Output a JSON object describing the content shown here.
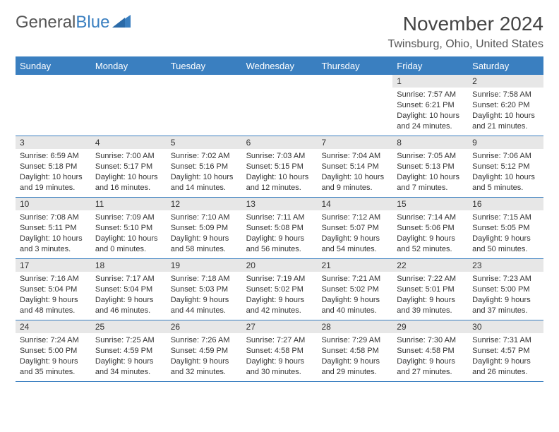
{
  "brand": {
    "part1": "General",
    "part2": "Blue",
    "logo_color": "#3a7fc0"
  },
  "title": "November 2024",
  "location": "Twinsburg, Ohio, United States",
  "dow_header_bg": "#3a7fc0",
  "dow_header_fg": "#ffffff",
  "daynum_bg": "#e7e7e7",
  "border_color": "#3a7fc0",
  "days_of_week": [
    "Sunday",
    "Monday",
    "Tuesday",
    "Wednesday",
    "Thursday",
    "Friday",
    "Saturday"
  ],
  "weeks": [
    [
      {
        "n": "",
        "sunrise": "",
        "sunset": "",
        "daylight": ""
      },
      {
        "n": "",
        "sunrise": "",
        "sunset": "",
        "daylight": ""
      },
      {
        "n": "",
        "sunrise": "",
        "sunset": "",
        "daylight": ""
      },
      {
        "n": "",
        "sunrise": "",
        "sunset": "",
        "daylight": ""
      },
      {
        "n": "",
        "sunrise": "",
        "sunset": "",
        "daylight": ""
      },
      {
        "n": "1",
        "sunrise": "Sunrise: 7:57 AM",
        "sunset": "Sunset: 6:21 PM",
        "daylight": "Daylight: 10 hours and 24 minutes."
      },
      {
        "n": "2",
        "sunrise": "Sunrise: 7:58 AM",
        "sunset": "Sunset: 6:20 PM",
        "daylight": "Daylight: 10 hours and 21 minutes."
      }
    ],
    [
      {
        "n": "3",
        "sunrise": "Sunrise: 6:59 AM",
        "sunset": "Sunset: 5:18 PM",
        "daylight": "Daylight: 10 hours and 19 minutes."
      },
      {
        "n": "4",
        "sunrise": "Sunrise: 7:00 AM",
        "sunset": "Sunset: 5:17 PM",
        "daylight": "Daylight: 10 hours and 16 minutes."
      },
      {
        "n": "5",
        "sunrise": "Sunrise: 7:02 AM",
        "sunset": "Sunset: 5:16 PM",
        "daylight": "Daylight: 10 hours and 14 minutes."
      },
      {
        "n": "6",
        "sunrise": "Sunrise: 7:03 AM",
        "sunset": "Sunset: 5:15 PM",
        "daylight": "Daylight: 10 hours and 12 minutes."
      },
      {
        "n": "7",
        "sunrise": "Sunrise: 7:04 AM",
        "sunset": "Sunset: 5:14 PM",
        "daylight": "Daylight: 10 hours and 9 minutes."
      },
      {
        "n": "8",
        "sunrise": "Sunrise: 7:05 AM",
        "sunset": "Sunset: 5:13 PM",
        "daylight": "Daylight: 10 hours and 7 minutes."
      },
      {
        "n": "9",
        "sunrise": "Sunrise: 7:06 AM",
        "sunset": "Sunset: 5:12 PM",
        "daylight": "Daylight: 10 hours and 5 minutes."
      }
    ],
    [
      {
        "n": "10",
        "sunrise": "Sunrise: 7:08 AM",
        "sunset": "Sunset: 5:11 PM",
        "daylight": "Daylight: 10 hours and 3 minutes."
      },
      {
        "n": "11",
        "sunrise": "Sunrise: 7:09 AM",
        "sunset": "Sunset: 5:10 PM",
        "daylight": "Daylight: 10 hours and 0 minutes."
      },
      {
        "n": "12",
        "sunrise": "Sunrise: 7:10 AM",
        "sunset": "Sunset: 5:09 PM",
        "daylight": "Daylight: 9 hours and 58 minutes."
      },
      {
        "n": "13",
        "sunrise": "Sunrise: 7:11 AM",
        "sunset": "Sunset: 5:08 PM",
        "daylight": "Daylight: 9 hours and 56 minutes."
      },
      {
        "n": "14",
        "sunrise": "Sunrise: 7:12 AM",
        "sunset": "Sunset: 5:07 PM",
        "daylight": "Daylight: 9 hours and 54 minutes."
      },
      {
        "n": "15",
        "sunrise": "Sunrise: 7:14 AM",
        "sunset": "Sunset: 5:06 PM",
        "daylight": "Daylight: 9 hours and 52 minutes."
      },
      {
        "n": "16",
        "sunrise": "Sunrise: 7:15 AM",
        "sunset": "Sunset: 5:05 PM",
        "daylight": "Daylight: 9 hours and 50 minutes."
      }
    ],
    [
      {
        "n": "17",
        "sunrise": "Sunrise: 7:16 AM",
        "sunset": "Sunset: 5:04 PM",
        "daylight": "Daylight: 9 hours and 48 minutes."
      },
      {
        "n": "18",
        "sunrise": "Sunrise: 7:17 AM",
        "sunset": "Sunset: 5:04 PM",
        "daylight": "Daylight: 9 hours and 46 minutes."
      },
      {
        "n": "19",
        "sunrise": "Sunrise: 7:18 AM",
        "sunset": "Sunset: 5:03 PM",
        "daylight": "Daylight: 9 hours and 44 minutes."
      },
      {
        "n": "20",
        "sunrise": "Sunrise: 7:19 AM",
        "sunset": "Sunset: 5:02 PM",
        "daylight": "Daylight: 9 hours and 42 minutes."
      },
      {
        "n": "21",
        "sunrise": "Sunrise: 7:21 AM",
        "sunset": "Sunset: 5:02 PM",
        "daylight": "Daylight: 9 hours and 40 minutes."
      },
      {
        "n": "22",
        "sunrise": "Sunrise: 7:22 AM",
        "sunset": "Sunset: 5:01 PM",
        "daylight": "Daylight: 9 hours and 39 minutes."
      },
      {
        "n": "23",
        "sunrise": "Sunrise: 7:23 AM",
        "sunset": "Sunset: 5:00 PM",
        "daylight": "Daylight: 9 hours and 37 minutes."
      }
    ],
    [
      {
        "n": "24",
        "sunrise": "Sunrise: 7:24 AM",
        "sunset": "Sunset: 5:00 PM",
        "daylight": "Daylight: 9 hours and 35 minutes."
      },
      {
        "n": "25",
        "sunrise": "Sunrise: 7:25 AM",
        "sunset": "Sunset: 4:59 PM",
        "daylight": "Daylight: 9 hours and 34 minutes."
      },
      {
        "n": "26",
        "sunrise": "Sunrise: 7:26 AM",
        "sunset": "Sunset: 4:59 PM",
        "daylight": "Daylight: 9 hours and 32 minutes."
      },
      {
        "n": "27",
        "sunrise": "Sunrise: 7:27 AM",
        "sunset": "Sunset: 4:58 PM",
        "daylight": "Daylight: 9 hours and 30 minutes."
      },
      {
        "n": "28",
        "sunrise": "Sunrise: 7:29 AM",
        "sunset": "Sunset: 4:58 PM",
        "daylight": "Daylight: 9 hours and 29 minutes."
      },
      {
        "n": "29",
        "sunrise": "Sunrise: 7:30 AM",
        "sunset": "Sunset: 4:58 PM",
        "daylight": "Daylight: 9 hours and 27 minutes."
      },
      {
        "n": "30",
        "sunrise": "Sunrise: 7:31 AM",
        "sunset": "Sunset: 4:57 PM",
        "daylight": "Daylight: 9 hours and 26 minutes."
      }
    ]
  ]
}
